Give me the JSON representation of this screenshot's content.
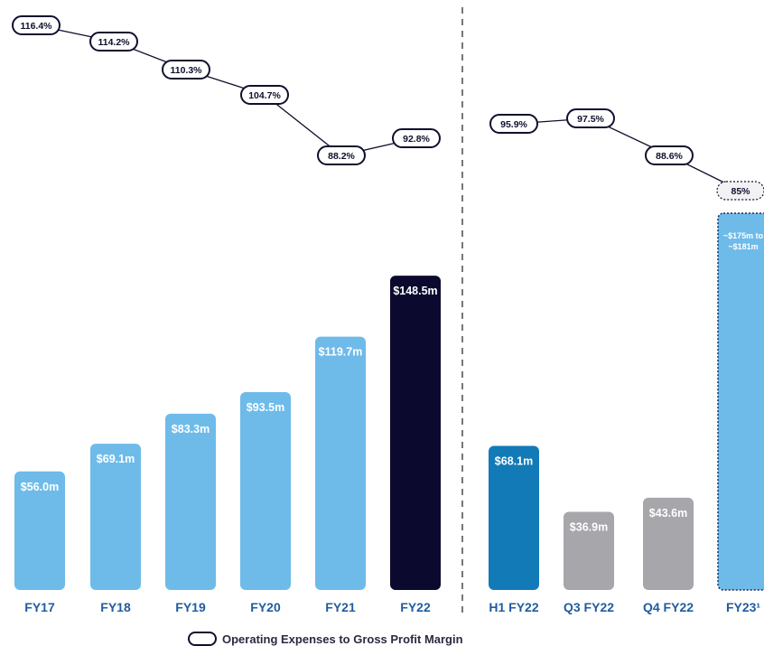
{
  "chart_data": {
    "type": "bar",
    "title": "",
    "categories": [
      "FY17",
      "FY18",
      "FY19",
      "FY20",
      "FY21",
      "FY22",
      "H1 FY22",
      "Q3 FY22",
      "Q4 FY22",
      "FY23¹"
    ],
    "series": [
      {
        "values": [
          56.0,
          69.1,
          83.3,
          93.5,
          119.7,
          148.5,
          68.1,
          36.9,
          43.6,
          178
        ],
        "labels": [
          "$56.0m",
          "$69.1m",
          "$83.3m",
          "$93.5m",
          "$119.7m",
          "$148.5m",
          "$68.1m",
          "$36.9m",
          "$43.6m",
          "~$175m to ~$181m"
        ],
        "colors": [
          "#6ebbea",
          "#6ebbea",
          "#6ebbea",
          "#6ebbea",
          "#6ebbea",
          "#0b0a2e",
          "#137ab8",
          "#a6a6ab",
          "#a6a6ab",
          "#6ebbea"
        ]
      }
    ],
    "line_series": {
      "name": "Operating Expenses to Gross Profit Margin",
      "groups": [
        {
          "categories": [
            "FY17",
            "FY18",
            "FY19",
            "FY20",
            "FY21",
            "FY22"
          ],
          "values": [
            116.4,
            114.2,
            110.3,
            104.7,
            88.2,
            92.8
          ],
          "labels": [
            "116.4%",
            "114.2%",
            "110.3%",
            "104.7%",
            "88.2%",
            "92.8%"
          ]
        },
        {
          "categories": [
            "H1 FY22",
            "Q3 FY22",
            "Q4 FY22",
            "FY23¹"
          ],
          "values": [
            95.9,
            97.5,
            88.6,
            85
          ],
          "labels": [
            "95.9%",
            "97.5%",
            "88.6%",
            "85%"
          ]
        }
      ]
    },
    "ylim": [
      0,
      180
    ],
    "legend": {
      "position": "bottom",
      "entries": [
        "Operating Expenses to Gross Profit Margin"
      ]
    },
    "colors": {
      "bar_light": "#6ebbea",
      "bar_dark": "#0b0a2e",
      "bar_mid": "#137ab8",
      "bar_grey": "#a6a6ab",
      "category_label": "#1f5c9e",
      "pill_border": "#0f0f2e",
      "divider": "#555555"
    }
  }
}
